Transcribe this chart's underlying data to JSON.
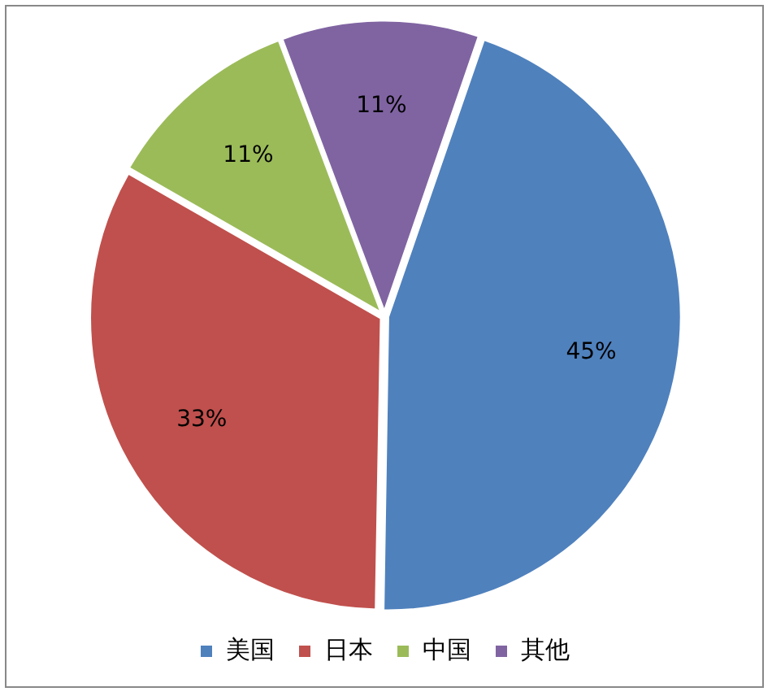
{
  "chart_data": {
    "type": "pie",
    "categories": [
      "美国",
      "日本",
      "中国",
      "其他"
    ],
    "values": [
      45,
      33,
      11,
      11
    ],
    "colors": [
      "#4f81bd",
      "#c0504d",
      "#9bbb59",
      "#8064a2"
    ],
    "value_labels": [
      "45%",
      "33%",
      "11%",
      "11%"
    ],
    "legend": "bottom"
  }
}
